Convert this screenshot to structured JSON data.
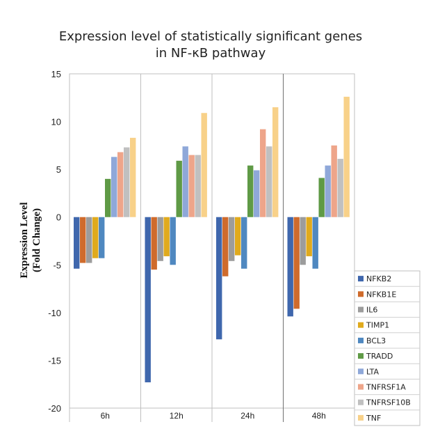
{
  "chart_data": {
    "type": "bar",
    "title_lines": [
      "Expression level of statistically significant genes",
      "in NF-κB pathway"
    ],
    "ylabel_lines": [
      "Expression Level",
      "(Fold Change)"
    ],
    "xlabel": "",
    "categories": [
      "6h",
      "12h",
      "24h",
      "48h"
    ],
    "ylim": [
      -20,
      15
    ],
    "yticks": [
      15,
      10,
      5,
      0,
      -5,
      -10,
      -15,
      -20
    ],
    "grid": "vertical category dividers",
    "legend_position": "bottom-right",
    "series": [
      {
        "name": "NFKB2",
        "color": "#3f67ad",
        "values": [
          -5.4,
          -17.3,
          -12.8,
          -10.4
        ]
      },
      {
        "name": "NFKB1E",
        "color": "#cf6b2c",
        "values": [
          -4.8,
          -5.5,
          -6.2,
          -9.6
        ]
      },
      {
        "name": "IL6",
        "color": "#9c9c9c",
        "values": [
          -4.8,
          -4.6,
          -4.6,
          -5.0
        ]
      },
      {
        "name": "TIMP1",
        "color": "#e0aa1d",
        "values": [
          -4.3,
          -4.1,
          -4.0,
          -4.1
        ]
      },
      {
        "name": "BCL3",
        "color": "#4f88c0",
        "values": [
          -4.3,
          -5.0,
          -5.4,
          -5.4
        ]
      },
      {
        "name": "TRADD",
        "color": "#5f9a46",
        "values": [
          4.0,
          5.9,
          5.4,
          4.1
        ]
      },
      {
        "name": "LTA",
        "color": "#8fa8d9",
        "values": [
          6.3,
          7.4,
          4.9,
          5.4
        ]
      },
      {
        "name": "TNFRSF1A",
        "color": "#eea58a",
        "values": [
          6.8,
          6.5,
          9.2,
          7.5
        ]
      },
      {
        "name": "TNFRSF10B",
        "color": "#c0c0c0",
        "values": [
          7.3,
          6.5,
          7.4,
          6.1
        ]
      },
      {
        "name": "TNF",
        "color": "#f8d189",
        "values": [
          8.3,
          10.9,
          11.5,
          12.6
        ]
      }
    ]
  }
}
